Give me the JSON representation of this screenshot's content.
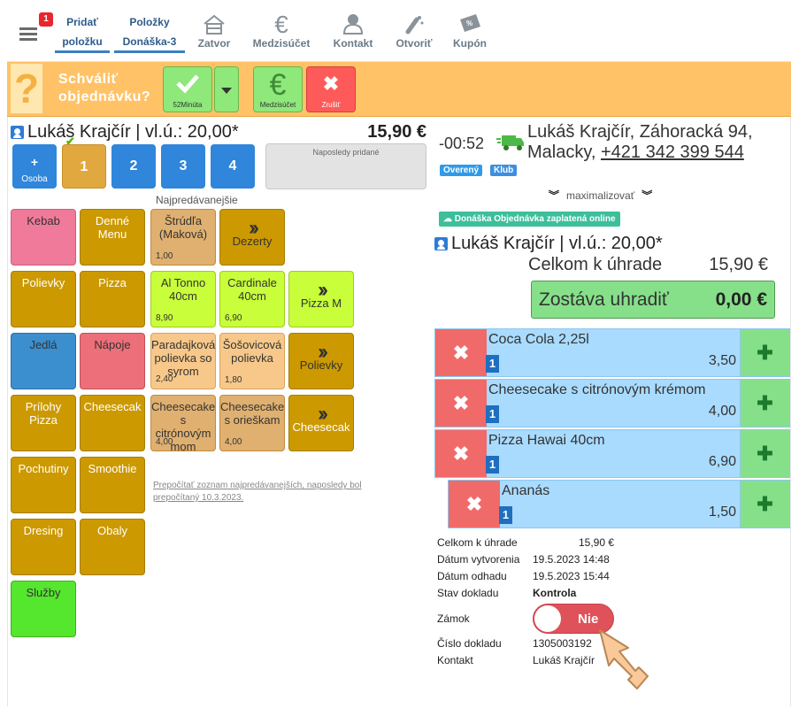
{
  "nav": {
    "badge": "1",
    "add_item_line1": "Pridať",
    "add_item_line2": "položku",
    "items_line1": "Položky",
    "items_line2": "Donáška-3",
    "close": "Zatvor",
    "subtotal": "Medzisúčet",
    "contact": "Kontakt",
    "open": "Otvoriť",
    "coupon": "Kupón"
  },
  "approve": {
    "qmark": "?",
    "text_line1": "Schváliť",
    "text_line2": "objednávku?",
    "confirm_sub": "52Minúta",
    "subtotal_sub": "Medzisúčet",
    "cancel_sub": "Zrušiť"
  },
  "left": {
    "person": "Lukáš Krajčír | vl.ú.: 20,00*",
    "total": "15,90 €",
    "add_person_sub": "Osoba",
    "seats": [
      "1",
      "2",
      "3",
      "4"
    ],
    "recent_label": "Naposledy pridané",
    "bestsellers_label": "Najpredávanejšie",
    "categories": {
      "kebab": "Kebab",
      "daily_menu": "Denné Menu",
      "soups": "Polievky",
      "pizza": "Pizza",
      "meals": "Jedlá",
      "drinks": "Nápoje",
      "pizza_sides": "Prílohy Pizza",
      "cheesecake": "Cheesecak",
      "sauces": "Pochutiny",
      "smoothie": "Smoothie",
      "dressing": "Dresing",
      "packaging": "Obaly",
      "services": "Služby"
    },
    "bestsellers": {
      "strudel": "Štrúdľa (Maková)",
      "strudel_price": "1,00",
      "desserts": "Dezerty",
      "tonno": "Al Tonno 40cm",
      "tonno_price": "8,90",
      "cardinale": "Cardinale 40cm",
      "cardinale_price": "6,90",
      "pizza_m": "Pizza M",
      "tomato_soup": "Paradajková polievka so syrom",
      "tomato_soup_price": "2,40",
      "lentil_soup": "Šošovicová polievka",
      "lentil_soup_price": "1,80",
      "soups_more": "Polievky",
      "cheesecake_lemon": "Cheesecake s citrónovým mom",
      "cheesecake_lemon_price": "4,00",
      "cheesecake_nut": "Cheesecake s orieškam",
      "cheesecake_nut_price": "4,00",
      "cheesecake_more": "Cheesecak"
    },
    "recalc_link": "Prepočítať zoznam najpredávanejších, naposledy bol prepočítaný 10.3.2023."
  },
  "right": {
    "time": "-00:52",
    "customer_line1": "Lukáš Krajčír, Záhoracká 94,",
    "customer_line2_prefix": "Malacky, ",
    "phone": "+421 342 399 544",
    "tag_verified": "Overený",
    "tag_club": "Klub",
    "maximize": "maximalizovať",
    "paid_badge": "Donáška Objednávka zaplatená online",
    "person": "Lukáš Krajčír | vl.ú.: 20,00*",
    "total_label": "Celkom k úhrade",
    "total_value": "15,90 €",
    "remaining_label": "Zostáva uhradiť",
    "remaining_value": "0,00 €",
    "items": [
      {
        "name": "Coca Cola 2,25l",
        "qty": "1",
        "price": "3,50"
      },
      {
        "name": "Cheesecake s citrónovým krémom",
        "qty": "1",
        "price": "4,00"
      },
      {
        "name": "Pizza Hawai 40cm",
        "qty": "1",
        "price": "6,90"
      },
      {
        "name": "Ananás",
        "qty": "1",
        "price": "1,50"
      }
    ],
    "info": {
      "total_label": "Celkom k úhrade",
      "total_value": "15,90 €",
      "created_label": "Dátum vytvorenia",
      "created_value": "19.5.2023 14:48",
      "dispatch_label": "Dátum odhadu",
      "dispatch_value": "19.5.2023 15:44",
      "status_label": "Stav dokladu",
      "status_value": "Kontrola",
      "lock_label": "Zámok",
      "lock_value": "Nie",
      "doc_label": "Číslo dokladu",
      "doc_value": "1305003192",
      "contact_label": "Kontakt",
      "contact_value": "Lukáš Krajčír"
    }
  },
  "colors": {
    "accent": "#2f86da",
    "approve_bar": "#ffc266",
    "danger": "#e0525a",
    "success": "#86e08a"
  }
}
